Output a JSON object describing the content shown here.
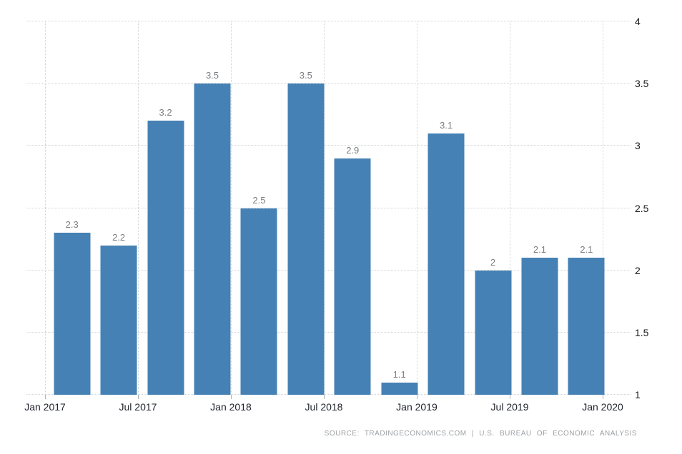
{
  "chart_data": {
    "type": "bar",
    "title": "",
    "xlabel": "",
    "ylabel": "",
    "categories": [
      "Q1 2017",
      "Q2 2017",
      "Q3 2017",
      "Q4 2017",
      "Q1 2018",
      "Q2 2018",
      "Q3 2018",
      "Q4 2018",
      "Q1 2019",
      "Q2 2019",
      "Q3 2019",
      "Q4 2019"
    ],
    "values": [
      2.3,
      2.2,
      3.2,
      3.5,
      2.5,
      3.5,
      2.9,
      1.1,
      3.1,
      2,
      2.1,
      2.1
    ],
    "value_labels": [
      "2.3",
      "2.2",
      "3.2",
      "3.5",
      "2.5",
      "3.5",
      "2.9",
      "1.1",
      "3.1",
      "2",
      "2.1",
      "2.1"
    ],
    "x_tick_labels": [
      "Jan 2017",
      "Jul 2017",
      "Jan 2018",
      "Jul 2018",
      "Jan 2019",
      "Jul 2019",
      "Jan 2020"
    ],
    "y_ticks": [
      1,
      1.5,
      2,
      2.5,
      3,
      3.5,
      4
    ],
    "y_tick_labels": [
      "1",
      "1.5",
      "2",
      "2.5",
      "3",
      "3.5",
      "4"
    ],
    "ylim": [
      1,
      4
    ],
    "grid": true,
    "gridline_style": "dotted",
    "legend_position": "none",
    "bar_color": "#4581b4",
    "grid_color": "#cfd3d6",
    "value_label_color": "#7b7e82",
    "axis_label_color": "#21262e"
  },
  "footer": {
    "source_text": "SOURCE:  TRADINGECONOMICS.COM  |  U.S.  BUREAU  OF  ECONOMIC  ANALYSIS"
  }
}
